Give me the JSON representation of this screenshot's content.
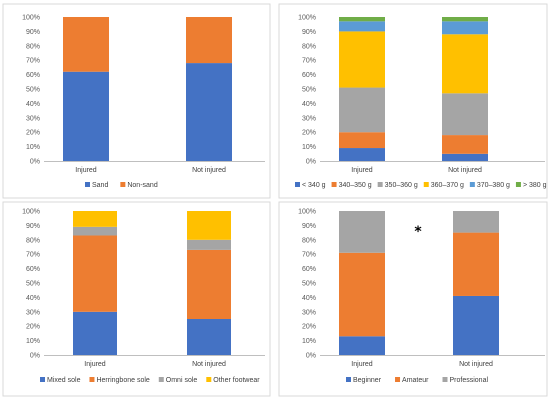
{
  "chart_data": [
    {
      "type": "bar",
      "stacked": true,
      "categories": [
        "Injured",
        "Not injured"
      ],
      "ylim": [
        0,
        100
      ],
      "y_ticks": [
        "0%",
        "10%",
        "20%",
        "30%",
        "40%",
        "50%",
        "60%",
        "70%",
        "80%",
        "90%",
        "100%"
      ],
      "grid": false,
      "legend_position": "bottom",
      "series": [
        {
          "name": "Sand",
          "color": "#4472C4",
          "values": [
            62,
            68
          ]
        },
        {
          "name": "Non-sand",
          "color": "#ED7D31",
          "values": [
            38,
            32
          ]
        }
      ]
    },
    {
      "type": "bar",
      "stacked": true,
      "categories": [
        "Injured",
        "Not injured"
      ],
      "ylim": [
        0,
        100
      ],
      "y_ticks": [
        "0%",
        "10%",
        "20%",
        "30%",
        "40%",
        "50%",
        "60%",
        "70%",
        "80%",
        "90%",
        "100%"
      ],
      "grid": false,
      "legend_position": "bottom",
      "series": [
        {
          "name": "< 340 g",
          "color": "#4472C4",
          "values": [
            9,
            5
          ]
        },
        {
          "name": "340–350 g",
          "color": "#ED7D31",
          "values": [
            11,
            13
          ]
        },
        {
          "name": "350–360 g",
          "color": "#A5A5A5",
          "values": [
            31,
            29
          ]
        },
        {
          "name": "360–370 g",
          "color": "#FFC000",
          "values": [
            39,
            41
          ]
        },
        {
          "name": "370–380 g",
          "color": "#5B9BD5",
          "values": [
            7,
            9
          ]
        },
        {
          "name": "> 380 g",
          "color": "#70AD47",
          "values": [
            3,
            3
          ]
        }
      ]
    },
    {
      "type": "bar",
      "stacked": true,
      "categories": [
        "Injured",
        "Not injured"
      ],
      "ylim": [
        0,
        100
      ],
      "y_ticks": [
        "0%",
        "10%",
        "20%",
        "30%",
        "40%",
        "50%",
        "60%",
        "70%",
        "80%",
        "90%",
        "100%"
      ],
      "grid": false,
      "legend_position": "bottom",
      "series": [
        {
          "name": "Mixed sole",
          "color": "#4472C4",
          "values": [
            30,
            25
          ]
        },
        {
          "name": "Herringbone sole",
          "color": "#ED7D31",
          "values": [
            53,
            48
          ]
        },
        {
          "name": "Omni sole",
          "color": "#A5A5A5",
          "values": [
            6,
            7
          ]
        },
        {
          "name": "Other footwear",
          "color": "#FFC000",
          "values": [
            11,
            20
          ]
        }
      ]
    },
    {
      "type": "bar",
      "stacked": true,
      "categories": [
        "Injured",
        "Not injured"
      ],
      "ylim": [
        0,
        100
      ],
      "y_ticks": [
        "0%",
        "10%",
        "20%",
        "30%",
        "40%",
        "50%",
        "60%",
        "70%",
        "80%",
        "90%",
        "100%"
      ],
      "grid": false,
      "legend_position": "bottom",
      "annotation": "*",
      "series": [
        {
          "name": "Beginner",
          "color": "#4472C4",
          "values": [
            13,
            41
          ]
        },
        {
          "name": "Amateur",
          "color": "#ED7D31",
          "values": [
            58,
            44
          ]
        },
        {
          "name": "Professional",
          "color": "#A5A5A5",
          "values": [
            29,
            15
          ]
        }
      ]
    }
  ]
}
